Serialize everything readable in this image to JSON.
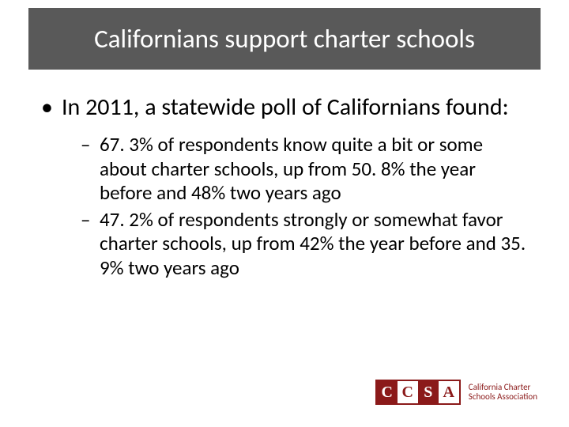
{
  "title": "Californians support charter schools",
  "main_bullet": "In 2011, a statewide poll of Californians found:",
  "sub_bullets": [
    "67. 3% of respondents know quite a bit or some about charter schools, up from 50. 8% the year before and 48% two years ago",
    "47. 2% of respondents strongly or somewhat favor charter schools, up from 42% the year before and 35. 9% two years ago"
  ],
  "logo": {
    "letters": [
      "C",
      "C",
      "S",
      "A"
    ],
    "line1": "California Charter",
    "line2": "Schools Association",
    "brand_color": "#8b1a1a"
  },
  "colors": {
    "title_bg": "#595959",
    "title_text": "#ffffff",
    "body_text": "#000000",
    "page_bg": "#ffffff"
  }
}
